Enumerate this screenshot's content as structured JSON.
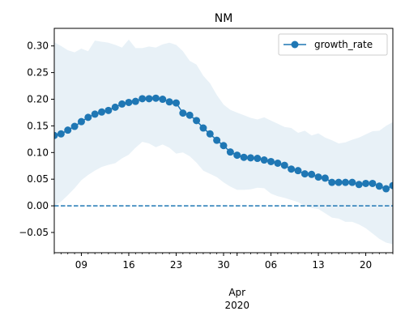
{
  "chart_data": {
    "type": "line",
    "title": "NM",
    "xlabel": "",
    "ylabel": "",
    "x_start": "2020-03-05",
    "x_end": "2020-04-24",
    "ylim": [
      -0.088,
      0.333
    ],
    "y_ticks": [
      -0.05,
      0.0,
      0.05,
      0.1,
      0.15,
      0.2,
      0.25,
      0.3
    ],
    "y_tick_labels": [
      "−0.05",
      "0.00",
      "0.05",
      "0.10",
      "0.15",
      "0.20",
      "0.25",
      "0.30"
    ],
    "x_ticks": [
      {
        "date": "2020-03-09",
        "label": "09"
      },
      {
        "date": "2020-03-16",
        "label": "16"
      },
      {
        "date": "2020-03-23",
        "label": "23"
      },
      {
        "date": "2020-03-30",
        "label": "30"
      },
      {
        "date": "2020-04-06",
        "label": "06"
      },
      {
        "date": "2020-04-13",
        "label": "13"
      },
      {
        "date": "2020-04-20",
        "label": "20"
      }
    ],
    "x_month_label": "Apr",
    "x_year_label": "2020",
    "grid": false,
    "legend_position": "top-right",
    "series": [
      {
        "name": "growth_rate",
        "color": "#1f77b4",
        "marker": "circle",
        "x": [
          "2020-03-04",
          "2020-03-05",
          "2020-03-06",
          "2020-03-07",
          "2020-03-08",
          "2020-03-09",
          "2020-03-10",
          "2020-03-11",
          "2020-03-12",
          "2020-03-13",
          "2020-03-14",
          "2020-03-15",
          "2020-03-16",
          "2020-03-17",
          "2020-03-18",
          "2020-03-19",
          "2020-03-20",
          "2020-03-21",
          "2020-03-22",
          "2020-03-23",
          "2020-03-24",
          "2020-03-25",
          "2020-03-26",
          "2020-03-27",
          "2020-03-28",
          "2020-03-29",
          "2020-03-30",
          "2020-03-31",
          "2020-04-01",
          "2020-04-02",
          "2020-04-03",
          "2020-04-04",
          "2020-04-05",
          "2020-04-06",
          "2020-04-07",
          "2020-04-08",
          "2020-04-09",
          "2020-04-10",
          "2020-04-11",
          "2020-04-12",
          "2020-04-13",
          "2020-04-14",
          "2020-04-15",
          "2020-04-16",
          "2020-04-17",
          "2020-04-18",
          "2020-04-19",
          "2020-04-20",
          "2020-04-21",
          "2020-04-22",
          "2020-04-23",
          "2020-04-24"
        ],
        "values": [
          0.146,
          0.132,
          0.135,
          0.142,
          0.149,
          0.158,
          0.166,
          0.172,
          0.176,
          0.179,
          0.185,
          0.191,
          0.194,
          0.196,
          0.201,
          0.201,
          0.202,
          0.2,
          0.195,
          0.193,
          0.174,
          0.17,
          0.16,
          0.146,
          0.135,
          0.123,
          0.113,
          0.101,
          0.095,
          0.091,
          0.09,
          0.089,
          0.086,
          0.083,
          0.08,
          0.076,
          0.069,
          0.066,
          0.06,
          0.059,
          0.054,
          0.052,
          0.044,
          0.044,
          0.044,
          0.044,
          0.04,
          0.042,
          0.042,
          0.037,
          0.032,
          0.038
        ],
        "upper": [
          0.3,
          0.307,
          0.3,
          0.292,
          0.288,
          0.295,
          0.29,
          0.31,
          0.308,
          0.306,
          0.302,
          0.297,
          0.312,
          0.296,
          0.296,
          0.299,
          0.297,
          0.303,
          0.306,
          0.302,
          0.29,
          0.272,
          0.265,
          0.244,
          0.23,
          0.208,
          0.19,
          0.18,
          0.175,
          0.17,
          0.165,
          0.162,
          0.166,
          0.16,
          0.154,
          0.148,
          0.146,
          0.137,
          0.141,
          0.132,
          0.136,
          0.128,
          0.123,
          0.117,
          0.119,
          0.124,
          0.128,
          0.134,
          0.14,
          0.141,
          0.15,
          0.157
        ],
        "lower": [
          -0.004,
          0.0,
          0.008,
          0.02,
          0.033,
          0.048,
          0.058,
          0.066,
          0.073,
          0.077,
          0.08,
          0.089,
          0.096,
          0.109,
          0.12,
          0.117,
          0.11,
          0.115,
          0.109,
          0.098,
          0.1,
          0.093,
          0.081,
          0.066,
          0.06,
          0.054,
          0.044,
          0.036,
          0.03,
          0.03,
          0.031,
          0.034,
          0.033,
          0.023,
          0.018,
          0.015,
          0.011,
          0.007,
          0.0,
          -0.004,
          -0.006,
          -0.014,
          -0.022,
          -0.024,
          -0.03,
          -0.03,
          -0.035,
          -0.042,
          -0.052,
          -0.062,
          -0.069,
          -0.072
        ]
      }
    ],
    "reference_line": {
      "y": 0.0,
      "color": "#1f77b4",
      "style": "dashed"
    },
    "band_color": "#1f77b4"
  }
}
